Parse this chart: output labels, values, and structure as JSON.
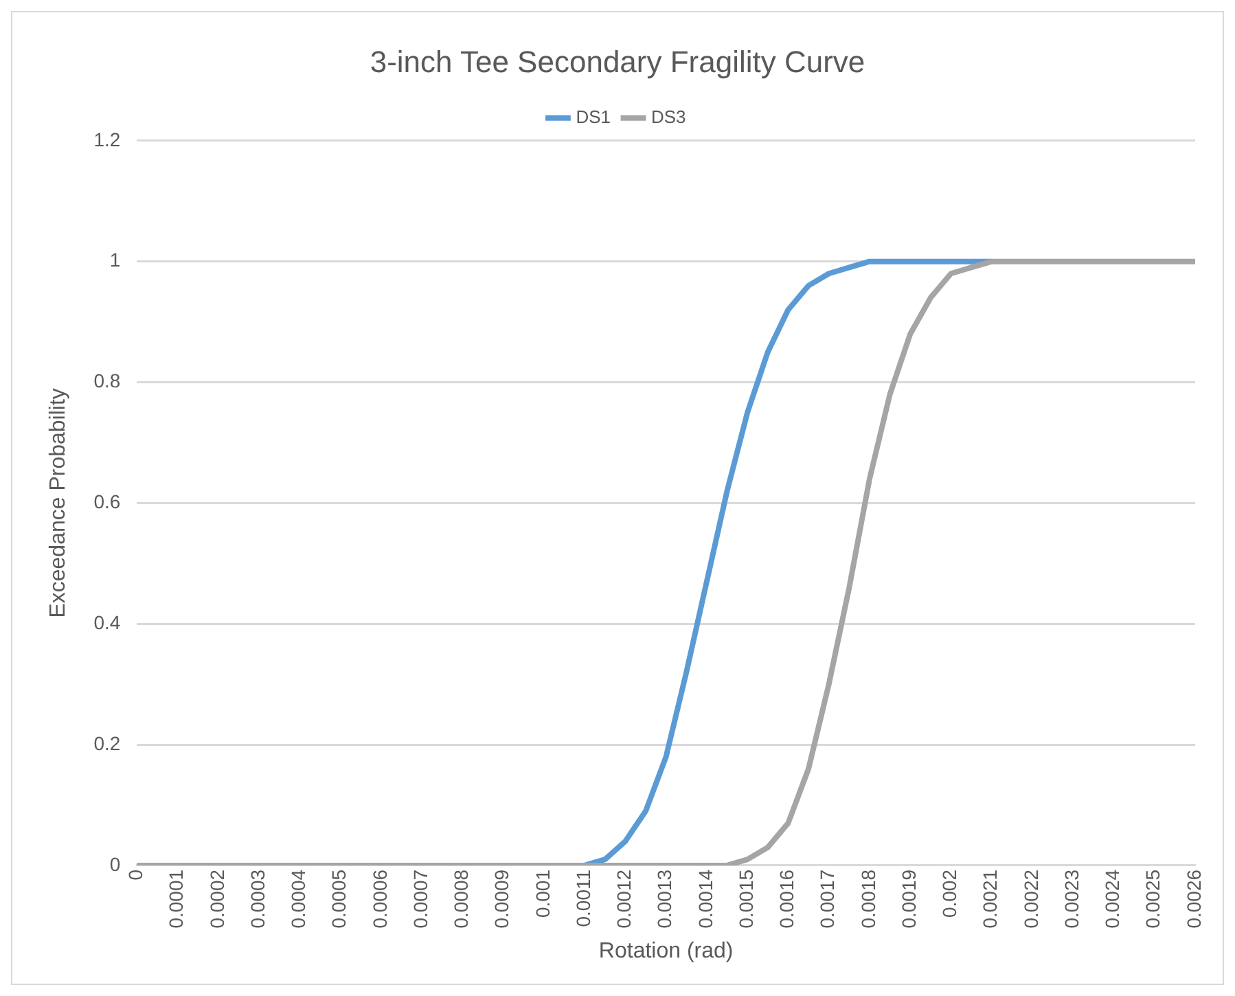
{
  "chart_data": {
    "type": "line",
    "title": "3-inch Tee Secondary Fragility Curve",
    "xlabel": "Rotation (rad)",
    "ylabel": "Exceedance Probability",
    "x": [
      0,
      5e-05,
      0.0001,
      0.00015,
      0.0002,
      0.00025,
      0.0003,
      0.00035,
      0.0004,
      0.00045,
      0.0005,
      0.00055,
      0.0006,
      0.00065,
      0.0007,
      0.00075,
      0.0008,
      0.00085,
      0.0009,
      0.00095,
      0.001,
      0.00105,
      0.0011,
      0.00115,
      0.0012,
      0.00125,
      0.0013,
      0.00135,
      0.0014,
      0.00145,
      0.0015,
      0.00155,
      0.0016,
      0.00165,
      0.0017,
      0.00175,
      0.0018,
      0.00185,
      0.0019,
      0.00195,
      0.002,
      0.00205,
      0.0021,
      0.00215,
      0.0022,
      0.00225,
      0.0023,
      0.00235,
      0.0024,
      0.00245,
      0.0025,
      0.00255,
      0.0026
    ],
    "series": [
      {
        "name": "DS1",
        "color": "#5b9bd5",
        "values": [
          null,
          null,
          null,
          null,
          null,
          null,
          null,
          null,
          null,
          null,
          null,
          null,
          null,
          null,
          null,
          null,
          null,
          null,
          null,
          null,
          0,
          0,
          0,
          0.01,
          0.04,
          0.09,
          0.18,
          0.32,
          0.47,
          0.62,
          0.75,
          0.85,
          0.92,
          0.96,
          0.98,
          0.99,
          1,
          1,
          1,
          1,
          1,
          1,
          1,
          null,
          null,
          null,
          null,
          null,
          null,
          null,
          null,
          null,
          null
        ]
      },
      {
        "name": "DS3",
        "color": "#a5a5a5",
        "values": [
          0,
          0,
          0,
          0,
          0,
          0,
          0,
          0,
          0,
          0,
          0,
          0,
          0,
          0,
          0,
          0,
          0,
          0,
          0,
          0,
          0,
          0,
          0,
          0,
          0,
          0,
          0,
          0,
          0,
          0,
          0.01,
          0.03,
          0.07,
          0.16,
          0.3,
          0.46,
          0.64,
          0.78,
          0.88,
          0.94,
          0.98,
          0.99,
          1,
          1,
          1,
          1,
          1,
          1,
          1,
          1,
          1,
          1,
          1
        ]
      }
    ],
    "xlim": [
      0,
      0.0026
    ],
    "xticks": [
      0,
      0.0001,
      0.0002,
      0.0003,
      0.0004,
      0.0005,
      0.0006,
      0.0007,
      0.0008,
      0.0009,
      0.001,
      0.0011,
      0.0012,
      0.0013,
      0.0014,
      0.0015,
      0.0016,
      0.0017,
      0.0018,
      0.0019,
      0.002,
      0.0021,
      0.0022,
      0.0023,
      0.0024,
      0.0025,
      0.0026
    ],
    "ylim": [
      0,
      1.2
    ],
    "yticks": [
      0,
      0.2,
      0.4,
      0.6,
      0.8,
      1,
      1.2
    ],
    "grid": "y",
    "legend": "top",
    "marker": "none",
    "line_style": "solid"
  }
}
